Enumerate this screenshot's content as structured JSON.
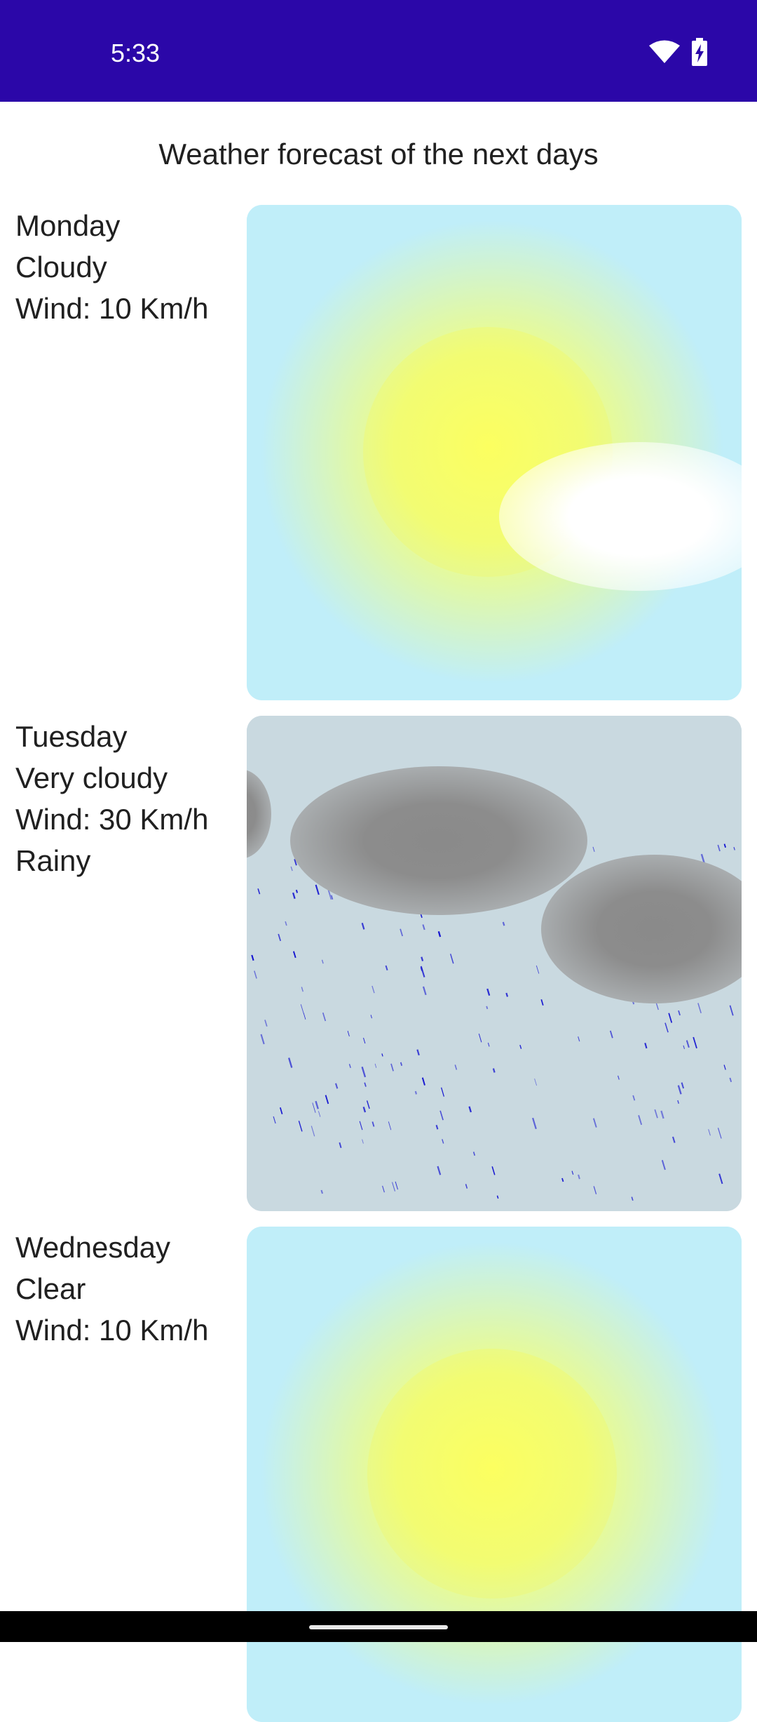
{
  "status_bar": {
    "time": "5:33",
    "icons": [
      "wifi-icon",
      "battery-charging-icon"
    ],
    "background_color": "#2b07a8"
  },
  "title": "Weather forecast of the next days",
  "days": [
    {
      "day": "Monday",
      "condition": "Cloudy",
      "wind": "Wind: 10 Km/h",
      "illustration": "sun-with-cloud"
    },
    {
      "day": "Tuesday",
      "condition": "Very cloudy",
      "wind": "Wind: 30 Km/h",
      "extra": "Rainy",
      "illustration": "rain-clouds"
    },
    {
      "day": "Wednesday",
      "condition": "Clear",
      "wind": "Wind: 10 Km/h",
      "illustration": "sun"
    }
  ],
  "colors": {
    "sky": "#c0eef9",
    "overcast_sky": "#c9d9e0",
    "sun": "#fcff60",
    "rain": "#1010d0",
    "cloud_dark": "#8a8a8a"
  }
}
